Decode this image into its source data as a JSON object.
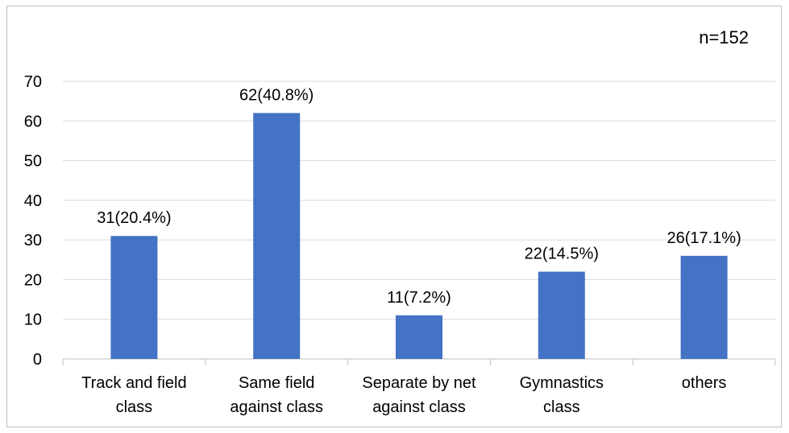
{
  "chart_data": {
    "type": "bar",
    "annotation": "n=152",
    "categories": [
      [
        "Track and field",
        "class"
      ],
      [
        "Same field",
        "against class"
      ],
      [
        "Separate by net",
        "against class"
      ],
      [
        "Gymnastics",
        "class"
      ],
      [
        "others"
      ]
    ],
    "values": [
      31,
      62,
      11,
      22,
      26
    ],
    "data_labels": [
      "31(20.4%)",
      "62(40.8%)",
      "11(7.2%)",
      "22(14.5%)",
      "26(17.1%)"
    ],
    "ylim": [
      0,
      70
    ],
    "yticks": [
      0,
      10,
      20,
      30,
      40,
      50,
      60,
      70
    ],
    "grid": true,
    "legend": "none",
    "bar_color": "#4472c4"
  }
}
